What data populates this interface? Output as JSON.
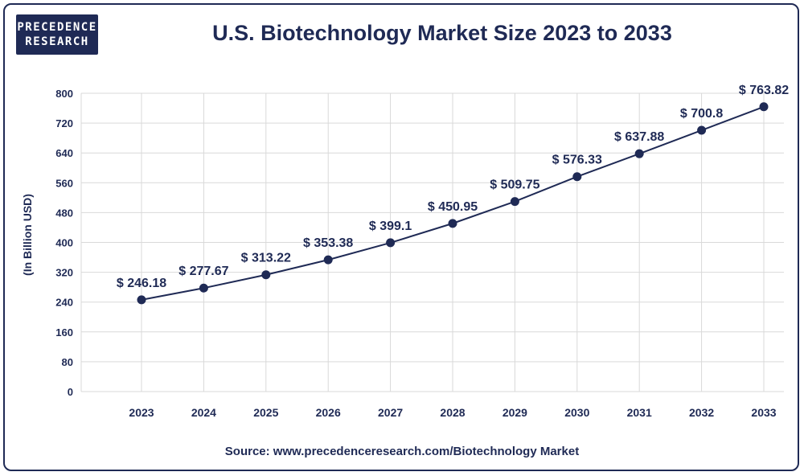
{
  "logo": {
    "line1": "PRECEDENCE",
    "line2": "RESEARCH"
  },
  "source": "Source: www.precedenceresearch.com/Biotechnology Market",
  "colors": {
    "primary": "#1f2a55",
    "grid": "#d9d9d9"
  },
  "chart_data": {
    "type": "line",
    "title": "U.S. Biotechnology Market Size 2023 to 2033",
    "xlabel": "",
    "ylabel": "(In Billion USD)",
    "ylim": [
      0,
      800
    ],
    "yticks": [
      0,
      80,
      160,
      240,
      320,
      400,
      480,
      560,
      640,
      720,
      800
    ],
    "grid": true,
    "categories": [
      "2023",
      "2024",
      "2025",
      "2026",
      "2027",
      "2028",
      "2029",
      "2030",
      "2031",
      "2032",
      "2033"
    ],
    "series": [
      {
        "name": "U.S. Biotechnology Market Size",
        "values": [
          246.18,
          277.67,
          313.22,
          353.38,
          399.1,
          450.95,
          509.75,
          576.33,
          637.88,
          700.8,
          763.82
        ],
        "labels": [
          "$ 246.18",
          "$ 277.67",
          "$ 313.22",
          "$ 353.38",
          "$ 399.1",
          "$ 450.95",
          "$ 509.75",
          "$ 576.33",
          "$ 637.88",
          "$ 700.8",
          "$ 763.82"
        ]
      }
    ]
  }
}
